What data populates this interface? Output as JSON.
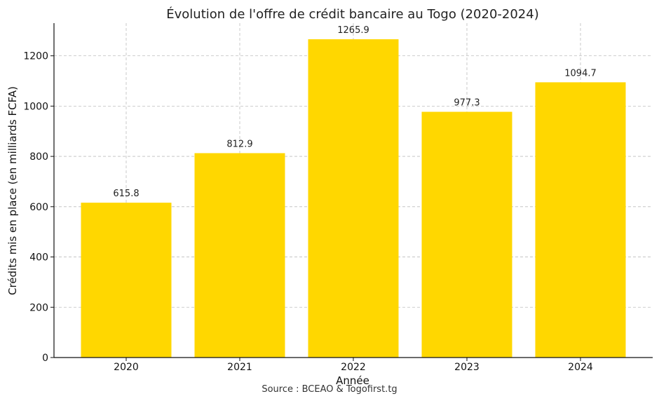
{
  "chart_data": {
    "type": "bar",
    "title": "Évolution de l'offre de crédit bancaire au Togo (2020-2024)",
    "xlabel": "Année",
    "ylabel": "Crédits mis en place (en milliards FCFA)",
    "categories": [
      "2020",
      "2021",
      "2022",
      "2023",
      "2024"
    ],
    "values": [
      615.8,
      812.9,
      1265.9,
      977.3,
      1094.7
    ],
    "value_labels": [
      "615.8",
      "812.9",
      "1265.9",
      "977.3",
      "1094.7"
    ],
    "ylim": [
      0,
      1330
    ],
    "yticks": [
      0,
      200,
      400,
      600,
      800,
      1000,
      1200
    ],
    "grid": true,
    "bar_color": "#FFD700",
    "source": "Source : BCEAO & Togofirst.tg"
  }
}
